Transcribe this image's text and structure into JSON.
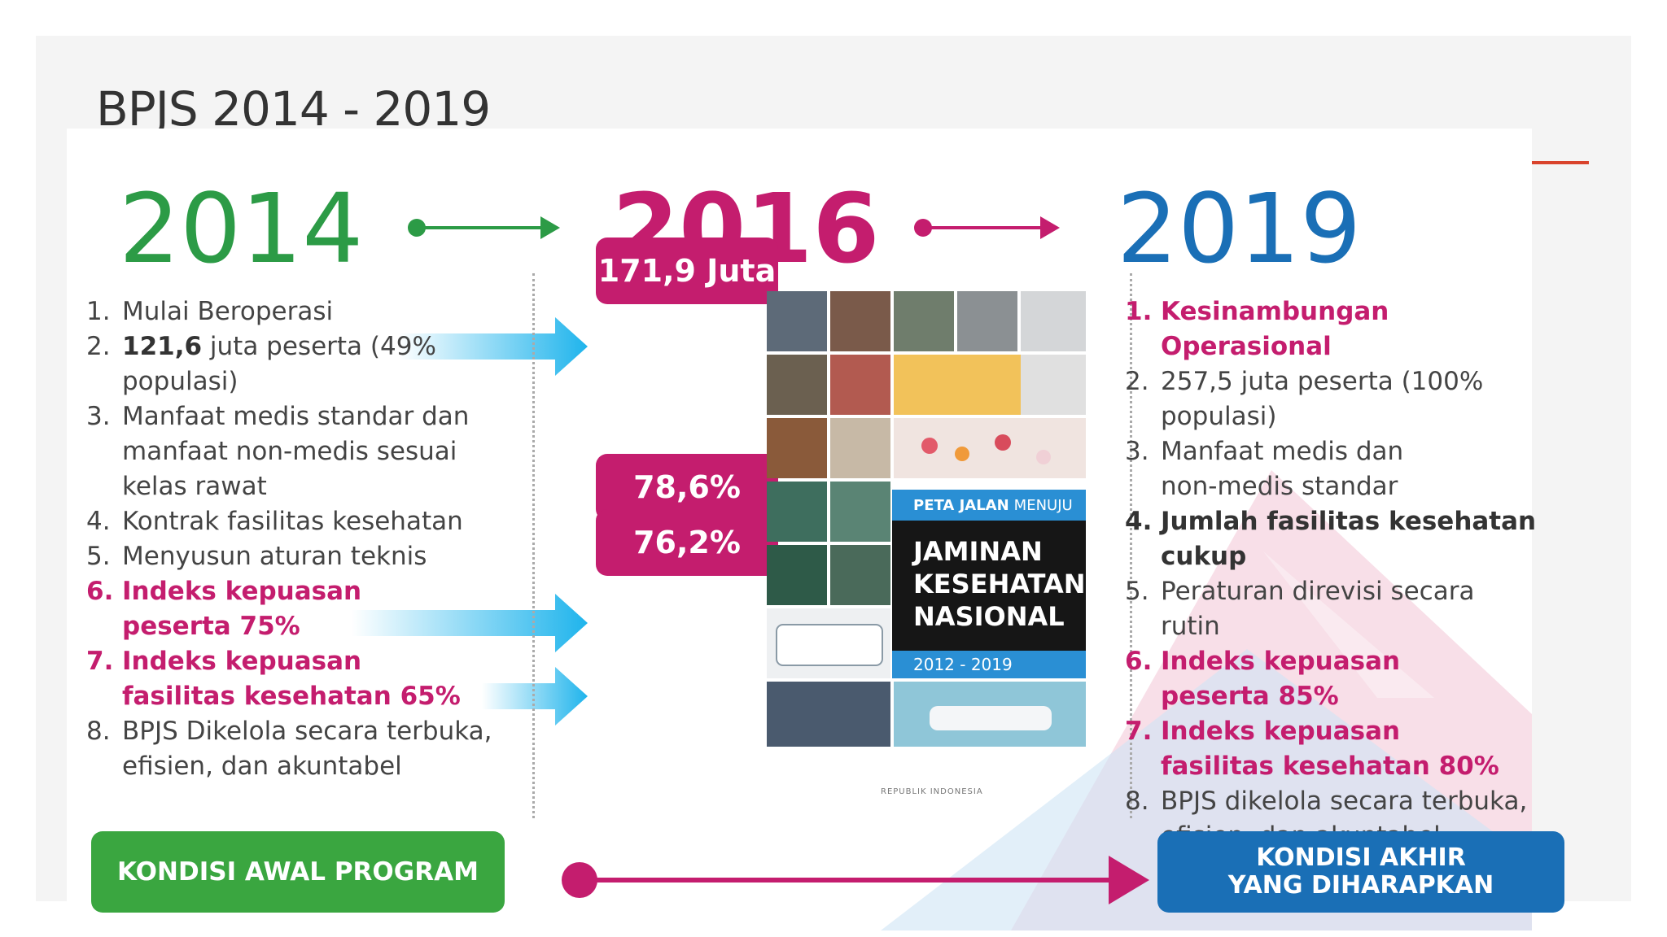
{
  "slide": {
    "title": "BPJS 2014 - 2019"
  },
  "timeline": {
    "years": [
      "2014",
      "2016",
      "2019"
    ]
  },
  "left_list": [
    {
      "num": "1.",
      "pre": "Mulai Beroperasi",
      "bold": "",
      "post": "",
      "highlight": false
    },
    {
      "num": "2.",
      "pre": "",
      "bold": "121,6",
      "post": " juta peserta (49% populasi)",
      "highlight": false
    },
    {
      "num": "3.",
      "pre": "Manfaat medis  standar dan manfaat non-medis sesuai kelas rawat",
      "bold": "",
      "post": "",
      "highlight": false
    },
    {
      "num": "4.",
      "pre": "Kontrak fasilitas kesehatan",
      "bold": "",
      "post": "",
      "highlight": false
    },
    {
      "num": "5.",
      "pre": "Menyusun aturan teknis",
      "bold": "",
      "post": "",
      "highlight": false
    },
    {
      "num": "6.",
      "pre": "Indeks kepuasan peserta 75%",
      "bold": "",
      "post": "",
      "highlight": true
    },
    {
      "num": "7.",
      "pre": "Indeks kepuasan fasilitas kesehatan 65%",
      "bold": "",
      "post": "",
      "highlight": true
    },
    {
      "num": "8.",
      "pre": "BPJS Dikelola secara terbuka, efisien, dan akuntabel",
      "bold": "",
      "post": "",
      "highlight": false
    }
  ],
  "right_list": [
    {
      "num": "1.",
      "text": "Kesinambungan Operasional",
      "style": "pink"
    },
    {
      "num": "2.",
      "text": "257,5 juta peserta (100% populasi)",
      "style": "normal"
    },
    {
      "num": "3.",
      "text": "Manfaat medis dan non-medis standar",
      "style": "normal"
    },
    {
      "num": "4.",
      "text": "Jumlah fasilitas kesehatan cukup",
      "style": "bold"
    },
    {
      "num": "5.",
      "text": "Peraturan direvisi secara rutin",
      "style": "normal"
    },
    {
      "num": "6.",
      "text": "Indeks kepuasan peserta 85%",
      "style": "pink"
    },
    {
      "num": "7.",
      "text": "Indeks kepuasan fasilitas kesehatan 80%",
      "style": "pink"
    },
    {
      "num": "8.",
      "text": "BPJS dikelola secara terbuka, efisien, dan akuntabel",
      "style": "normal"
    }
  ],
  "stats": [
    "171,9 Juta",
    "78,6%",
    "76,2%"
  ],
  "cover": {
    "banner_bold": "PETA JALAN",
    "banner_light": "MENUJU",
    "title_lines": [
      "JAMINAN",
      "KESEHATAN",
      "NASIONAL"
    ],
    "years": "2012 - 2019",
    "footer": "REPUBLIK INDONESIA"
  },
  "buttons": {
    "start": "KONDISI AWAL PROGRAM",
    "end_line1": "KONDISI AKHIR",
    "end_line2": "YANG DIHARAPKAN"
  },
  "colors": {
    "green": "#3aa640",
    "pink": "#c41d6e",
    "blue": "#1a6fb6",
    "cyan": "#1fb4ec",
    "title_rule": "#d9432c"
  }
}
